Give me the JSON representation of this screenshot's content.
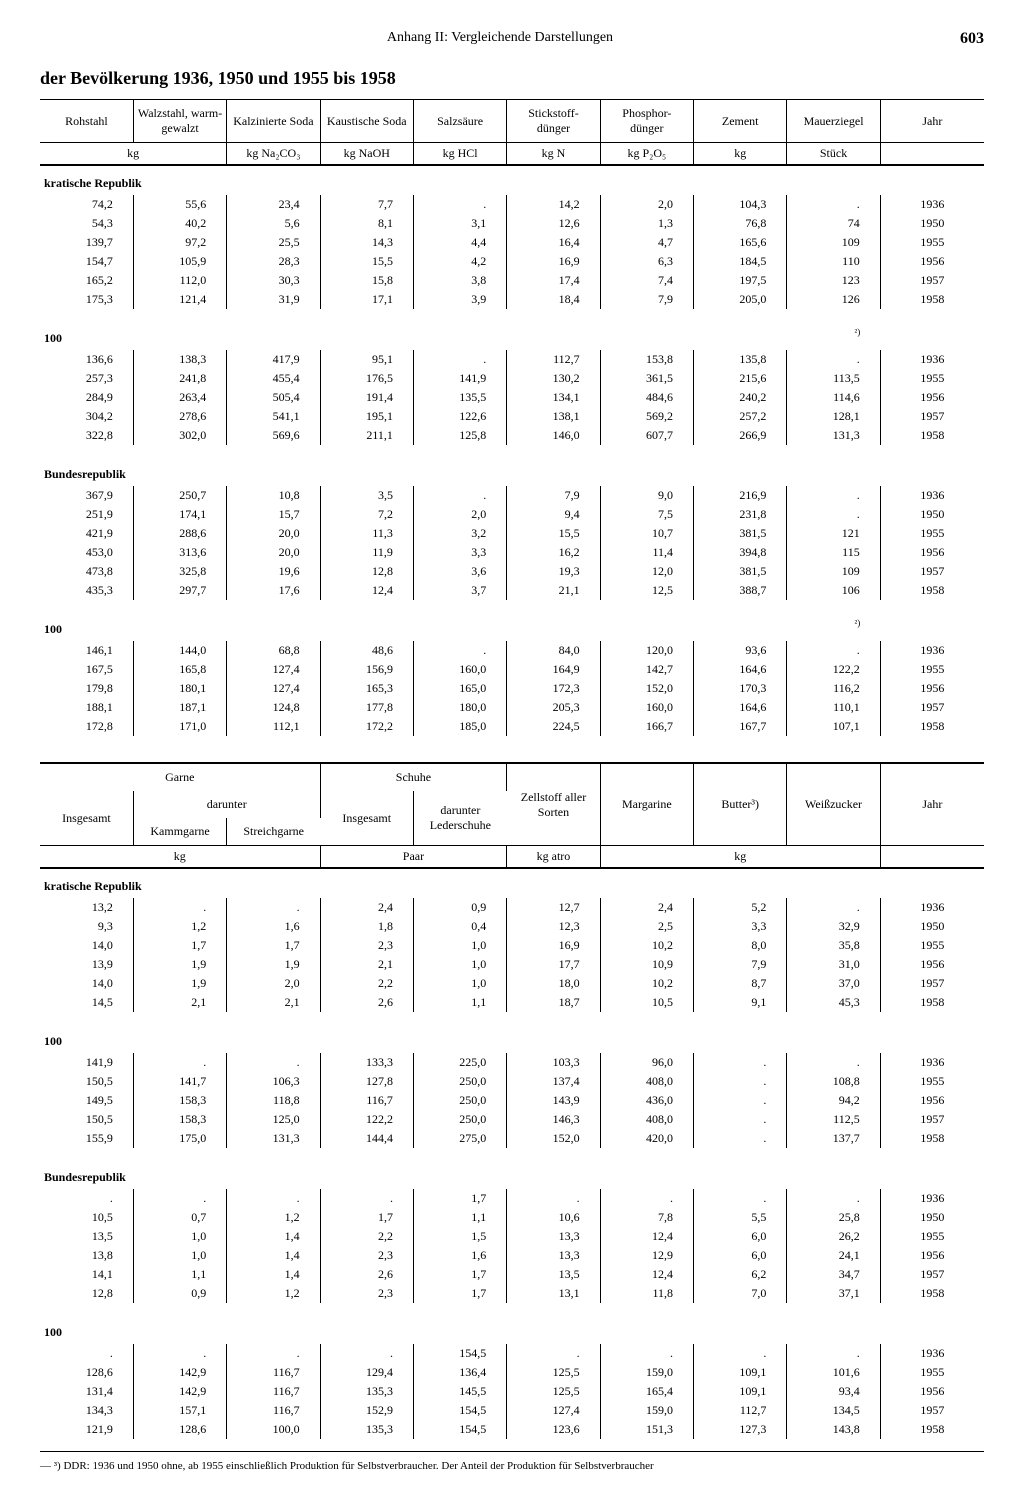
{
  "page": {
    "header_center": "Anhang II: Vergleichende Darstellungen",
    "page_number": "603",
    "title": "der Bevölkerung 1936, 1950 und 1955 bis 1958"
  },
  "table1": {
    "columns": [
      "Rohstahl",
      "Walzstahl, warm-gewalzt",
      "Kalzinierte Soda",
      "Kaustische Soda",
      "Salzsäure",
      "Stickstoff-dünger",
      "Phosphor-dünger",
      "Zement",
      "Mauerziegel",
      "Jahr"
    ],
    "units": [
      "kg",
      "",
      "kg Na₂CO₃",
      "kg NaOH",
      "kg HCl",
      "kg N",
      "kg P₂O₅",
      "kg",
      "Stück",
      ""
    ],
    "unit_colspan": [
      2,
      0,
      1,
      1,
      1,
      1,
      1,
      1,
      1,
      1
    ],
    "sections": [
      {
        "label": "kratische Republik",
        "rows": [
          [
            "74,2",
            "55,6",
            "23,4",
            "7,7",
            ".",
            "14,2",
            "2,0",
            "104,3",
            ".",
            "1936"
          ],
          [
            "54,3",
            "40,2",
            "5,6",
            "8,1",
            "3,1",
            "12,6",
            "1,3",
            "76,8",
            "74",
            "1950"
          ],
          [
            "139,7",
            "97,2",
            "25,5",
            "14,3",
            "4,4",
            "16,4",
            "4,7",
            "165,6",
            "109",
            "1955"
          ],
          [
            "154,7",
            "105,9",
            "28,3",
            "15,5",
            "4,2",
            "16,9",
            "6,3",
            "184,5",
            "110",
            "1956"
          ],
          [
            "165,2",
            "112,0",
            "30,3",
            "15,8",
            "3,8",
            "17,4",
            "7,4",
            "197,5",
            "123",
            "1957"
          ],
          [
            "175,3",
            "121,4",
            "31,9",
            "17,1",
            "3,9",
            "18,4",
            "7,9",
            "205,0",
            "126",
            "1958"
          ]
        ]
      },
      {
        "label": "100",
        "note_col8": "²)",
        "rows": [
          [
            "136,6",
            "138,3",
            "417,9",
            "95,1",
            ".",
            "112,7",
            "153,8",
            "135,8",
            ".",
            "1936"
          ],
          [
            "257,3",
            "241,8",
            "455,4",
            "176,5",
            "141,9",
            "130,2",
            "361,5",
            "215,6",
            "113,5",
            "1955"
          ],
          [
            "284,9",
            "263,4",
            "505,4",
            "191,4",
            "135,5",
            "134,1",
            "484,6",
            "240,2",
            "114,6",
            "1956"
          ],
          [
            "304,2",
            "278,6",
            "541,1",
            "195,1",
            "122,6",
            "138,1",
            "569,2",
            "257,2",
            "128,1",
            "1957"
          ],
          [
            "322,8",
            "302,0",
            "569,6",
            "211,1",
            "125,8",
            "146,0",
            "607,7",
            "266,9",
            "131,3",
            "1958"
          ]
        ]
      },
      {
        "label": "Bundesrepublik",
        "rows": [
          [
            "367,9",
            "250,7",
            "10,8",
            "3,5",
            ".",
            "7,9",
            "9,0",
            "216,9",
            ".",
            "1936"
          ],
          [
            "251,9",
            "174,1",
            "15,7",
            "7,2",
            "2,0",
            "9,4",
            "7,5",
            "231,8",
            ".",
            "1950"
          ],
          [
            "421,9",
            "288,6",
            "20,0",
            "11,3",
            "3,2",
            "15,5",
            "10,7",
            "381,5",
            "121",
            "1955"
          ],
          [
            "453,0",
            "313,6",
            "20,0",
            "11,9",
            "3,3",
            "16,2",
            "11,4",
            "394,8",
            "115",
            "1956"
          ],
          [
            "473,8",
            "325,8",
            "19,6",
            "12,8",
            "3,6",
            "19,3",
            "12,0",
            "381,5",
            "109",
            "1957"
          ],
          [
            "435,3",
            "297,7",
            "17,6",
            "12,4",
            "3,7",
            "21,1",
            "12,5",
            "388,7",
            "106",
            "1958"
          ]
        ]
      },
      {
        "label": "100",
        "note_col8": "²)",
        "rows": [
          [
            "146,1",
            "144,0",
            "68,8",
            "48,6",
            ".",
            "84,0",
            "120,0",
            "93,6",
            ".",
            "1936"
          ],
          [
            "167,5",
            "165,8",
            "127,4",
            "156,9",
            "160,0",
            "164,9",
            "142,7",
            "164,6",
            "122,2",
            "1955"
          ],
          [
            "179,8",
            "180,1",
            "127,4",
            "165,3",
            "165,0",
            "172,3",
            "152,0",
            "170,3",
            "116,2",
            "1956"
          ],
          [
            "188,1",
            "187,1",
            "124,8",
            "177,8",
            "180,0",
            "205,3",
            "160,0",
            "164,6",
            "110,1",
            "1957"
          ],
          [
            "172,8",
            "171,0",
            "112,1",
            "172,2",
            "185,0",
            "224,5",
            "166,7",
            "167,7",
            "107,1",
            "1958"
          ]
        ]
      }
    ]
  },
  "table2": {
    "header_top": [
      {
        "label": "Garne",
        "span": 3
      },
      {
        "label": "Schuhe",
        "span": 2
      },
      {
        "label": "Zellstoff aller Sorten",
        "span": 1,
        "rowspan": 3
      },
      {
        "label": "Margarine",
        "span": 1,
        "rowspan": 3
      },
      {
        "label": "Butter³)",
        "span": 1,
        "rowspan": 3
      },
      {
        "label": "Weißzucker",
        "span": 1,
        "rowspan": 3
      },
      {
        "label": "Jahr",
        "span": 1,
        "rowspan": 3
      }
    ],
    "header_mid_garne": {
      "insg": "Insgesamt",
      "darunter": "darunter",
      "k": "Kammgarne",
      "s": "Streichgarne"
    },
    "header_mid_schuhe": {
      "insg": "Insgesamt",
      "darunter": "darunter Lederschuhe"
    },
    "units": [
      "kg",
      "",
      "",
      "Paar",
      "",
      "kg atro",
      "kg",
      "",
      "",
      ""
    ],
    "unit_spans": [
      {
        "t": "kg",
        "s": 3
      },
      {
        "t": "Paar",
        "s": 2
      },
      {
        "t": "kg atro",
        "s": 1
      },
      {
        "t": "kg",
        "s": 3
      },
      {
        "t": "",
        "s": 1
      }
    ],
    "sections": [
      {
        "label": "kratische Republik",
        "rows": [
          [
            "13,2",
            ".",
            ".",
            "2,4",
            "0,9",
            "12,7",
            "2,4",
            "5,2",
            ".",
            "1936"
          ],
          [
            "9,3",
            "1,2",
            "1,6",
            "1,8",
            "0,4",
            "12,3",
            "2,5",
            "3,3",
            "32,9",
            "1950"
          ],
          [
            "14,0",
            "1,7",
            "1,7",
            "2,3",
            "1,0",
            "16,9",
            "10,2",
            "8,0",
            "35,8",
            "1955"
          ],
          [
            "13,9",
            "1,9",
            "1,9",
            "2,1",
            "1,0",
            "17,7",
            "10,9",
            "7,9",
            "31,0",
            "1956"
          ],
          [
            "14,0",
            "1,9",
            "2,0",
            "2,2",
            "1,0",
            "18,0",
            "10,2",
            "8,7",
            "37,0",
            "1957"
          ],
          [
            "14,5",
            "2,1",
            "2,1",
            "2,6",
            "1,1",
            "18,7",
            "10,5",
            "9,1",
            "45,3",
            "1958"
          ]
        ]
      },
      {
        "label": "100",
        "rows": [
          [
            "141,9",
            ".",
            ".",
            "133,3",
            "225,0",
            "103,3",
            "96,0",
            ".",
            ".",
            "1936"
          ],
          [
            "150,5",
            "141,7",
            "106,3",
            "127,8",
            "250,0",
            "137,4",
            "408,0",
            ".",
            "108,8",
            "1955"
          ],
          [
            "149,5",
            "158,3",
            "118,8",
            "116,7",
            "250,0",
            "143,9",
            "436,0",
            ".",
            "94,2",
            "1956"
          ],
          [
            "150,5",
            "158,3",
            "125,0",
            "122,2",
            "250,0",
            "146,3",
            "408,0",
            ".",
            "112,5",
            "1957"
          ],
          [
            "155,9",
            "175,0",
            "131,3",
            "144,4",
            "275,0",
            "152,0",
            "420,0",
            ".",
            "137,7",
            "1958"
          ]
        ]
      },
      {
        "label": "Bundesrepublik",
        "rows": [
          [
            ".",
            ".",
            ".",
            ".",
            "1,7",
            ".",
            ".",
            ".",
            ".",
            "1936"
          ],
          [
            "10,5",
            "0,7",
            "1,2",
            "1,7",
            "1,1",
            "10,6",
            "7,8",
            "5,5",
            "25,8",
            "1950"
          ],
          [
            "13,5",
            "1,0",
            "1,4",
            "2,2",
            "1,5",
            "13,3",
            "12,4",
            "6,0",
            "26,2",
            "1955"
          ],
          [
            "13,8",
            "1,0",
            "1,4",
            "2,3",
            "1,6",
            "13,3",
            "12,9",
            "6,0",
            "24,1",
            "1956"
          ],
          [
            "14,1",
            "1,1",
            "1,4",
            "2,6",
            "1,7",
            "13,5",
            "12,4",
            "6,2",
            "34,7",
            "1957"
          ],
          [
            "12,8",
            "0,9",
            "1,2",
            "2,3",
            "1,7",
            "13,1",
            "11,8",
            "7,0",
            "37,1",
            "1958"
          ]
        ]
      },
      {
        "label": "100",
        "rows": [
          [
            ".",
            ".",
            ".",
            ".",
            "154,5",
            ".",
            ".",
            ".",
            ".",
            "1936"
          ],
          [
            "128,6",
            "142,9",
            "116,7",
            "129,4",
            "136,4",
            "125,5",
            "159,0",
            "109,1",
            "101,6",
            "1955"
          ],
          [
            "131,4",
            "142,9",
            "116,7",
            "135,3",
            "145,5",
            "125,5",
            "165,4",
            "109,1",
            "93,4",
            "1956"
          ],
          [
            "134,3",
            "157,1",
            "116,7",
            "152,9",
            "154,5",
            "127,4",
            "159,0",
            "112,7",
            "134,5",
            "1957"
          ],
          [
            "121,9",
            "128,6",
            "100,0",
            "135,3",
            "154,5",
            "123,6",
            "151,3",
            "127,3",
            "143,8",
            "1958"
          ]
        ]
      }
    ]
  },
  "footnote": "— ³) DDR: 1936 und 1950 ohne, ab 1955 einschließlich Produktion für Selbstverbraucher. Der Anteil der Produktion für Selbstverbraucher"
}
